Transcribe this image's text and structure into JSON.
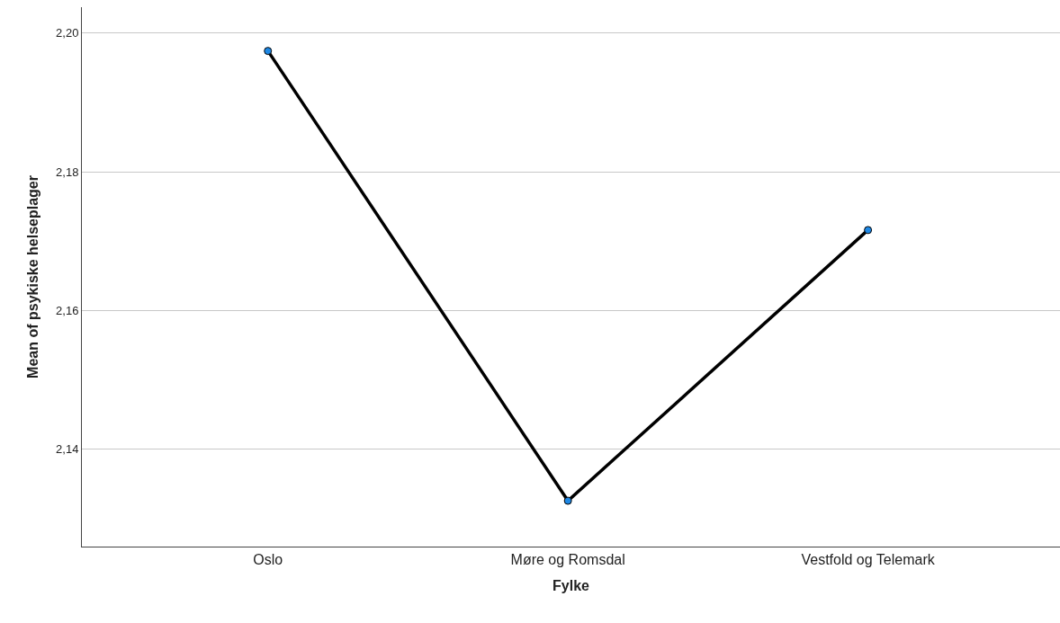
{
  "chart_data": {
    "type": "line",
    "xlabel": "Fylke",
    "ylabel": "Mean of psykiske helseplager",
    "categories": [
      "Oslo",
      "Møre og Romsdal",
      "Vestfold og Telemark"
    ],
    "series": [
      {
        "color": "#000000",
        "values": [
          2.1974,
          2.1326,
          2.1716
        ]
      }
    ],
    "ylim": [
      2.126,
      2.2037
    ],
    "yticks": [
      {
        "value": 2.14,
        "label": "2,14"
      },
      {
        "value": 2.16,
        "label": "2,16"
      },
      {
        "value": 2.18,
        "label": "2,18"
      },
      {
        "value": 2.2,
        "label": "2,20"
      }
    ],
    "grid": "y",
    "marker": "circle",
    "line_style": "solid",
    "legend": false
  }
}
